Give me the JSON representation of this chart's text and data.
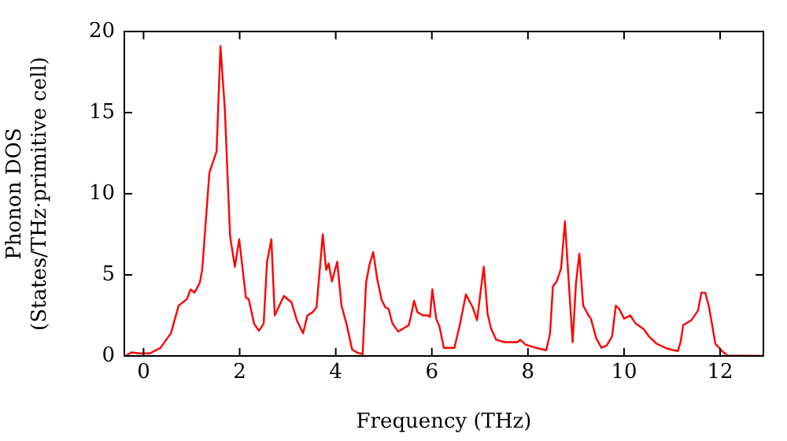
{
  "chart_data": {
    "type": "line",
    "xlabel": "Frequency (THz)",
    "ylabel": "Phonon DOS\n(States/THz·primitive cell)",
    "x": [
      -0.36,
      -0.25,
      -0.09,
      0.13,
      0.35,
      0.57,
      0.73,
      0.9,
      0.98,
      1.06,
      1.17,
      1.22,
      1.37,
      1.52,
      1.6,
      1.69,
      1.8,
      1.9,
      1.99,
      2.13,
      2.19,
      2.3,
      2.4,
      2.5,
      2.57,
      2.66,
      2.73,
      2.92,
      3.08,
      3.19,
      3.32,
      3.41,
      3.52,
      3.6,
      3.73,
      3.8,
      3.85,
      3.92,
      4.03,
      4.12,
      4.23,
      4.34,
      4.45,
      4.56,
      4.63,
      4.7,
      4.78,
      4.86,
      4.95,
      5.03,
      5.1,
      5.18,
      5.3,
      5.41,
      5.52,
      5.56,
      5.63,
      5.7,
      5.81,
      5.92,
      5.96,
      6.01,
      6.09,
      6.16,
      6.25,
      6.47,
      6.58,
      6.71,
      6.85,
      6.94,
      7.08,
      7.16,
      7.23,
      7.34,
      7.51,
      7.78,
      7.84,
      7.95,
      8.16,
      8.38,
      8.46,
      8.52,
      8.6,
      8.69,
      8.77,
      8.85,
      8.93,
      9.0,
      9.07,
      9.15,
      9.26,
      9.31,
      9.42,
      9.53,
      9.64,
      9.75,
      9.83,
      9.9,
      10.0,
      10.13,
      10.24,
      10.41,
      10.52,
      10.68,
      10.9,
      11.12,
      11.18,
      11.23,
      11.4,
      11.54,
      11.61,
      11.69,
      11.77,
      11.9,
      12.04,
      12.15,
      12.9
    ],
    "series": [
      {
        "color": "#ff0000",
        "values": [
          0.03,
          0.22,
          0.16,
          0.16,
          0.49,
          1.4,
          3.1,
          3.5,
          4.1,
          3.9,
          4.5,
          5.3,
          11.3,
          12.6,
          19.1,
          15.3,
          7.4,
          5.5,
          7.2,
          3.6,
          3.5,
          2.0,
          1.55,
          2.0,
          5.8,
          7.2,
          2.5,
          3.7,
          3.3,
          2.2,
          1.4,
          2.5,
          2.7,
          3.0,
          7.5,
          5.3,
          5.7,
          4.6,
          5.8,
          3.1,
          1.9,
          0.4,
          0.2,
          0.1,
          4.5,
          5.6,
          6.4,
          4.8,
          3.5,
          3.0,
          2.9,
          2.0,
          1.5,
          1.7,
          1.9,
          2.4,
          3.4,
          2.7,
          2.5,
          2.5,
          2.4,
          4.1,
          2.3,
          1.8,
          0.5,
          0.5,
          1.9,
          3.8,
          3.0,
          2.2,
          5.5,
          2.6,
          1.7,
          1.0,
          0.85,
          0.85,
          1.0,
          0.7,
          0.5,
          0.35,
          1.4,
          4.3,
          4.6,
          5.4,
          8.3,
          4.5,
          0.85,
          4.5,
          6.3,
          3.1,
          2.5,
          2.3,
          1.1,
          0.5,
          0.65,
          1.2,
          3.1,
          2.9,
          2.3,
          2.5,
          2.0,
          1.65,
          1.2,
          0.75,
          0.45,
          0.3,
          0.9,
          1.9,
          2.2,
          2.8,
          3.9,
          3.9,
          3.0,
          0.75,
          0.3,
          0.03,
          0
        ]
      }
    ],
    "xlim": [
      -0.4,
      12.9
    ],
    "ylim": [
      0,
      20
    ],
    "xticks": [
      0,
      2,
      4,
      6,
      8,
      10,
      12
    ],
    "yticks": [
      0,
      5,
      10,
      15,
      20
    ],
    "grid": false,
    "legend": false,
    "marker": "none",
    "line_style": "solid"
  }
}
